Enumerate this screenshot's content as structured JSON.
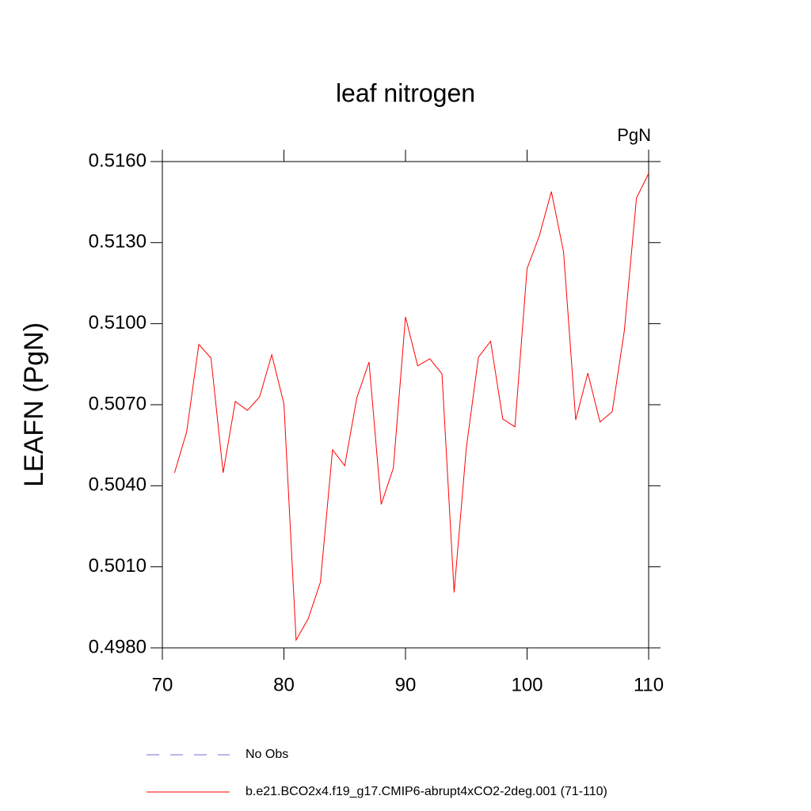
{
  "chart_data": {
    "type": "line",
    "title": "leaf nitrogen",
    "unit_label": "PgN",
    "y_label": "LEAFN  (PgN)",
    "x": [
      71,
      72,
      73,
      74,
      75,
      76,
      77,
      78,
      79,
      80,
      81,
      82,
      83,
      84,
      85,
      86,
      87,
      88,
      89,
      90,
      91,
      92,
      93,
      94,
      95,
      96,
      97,
      98,
      99,
      100,
      101,
      102,
      103,
      104,
      105,
      106,
      107,
      108,
      109,
      110
    ],
    "series": [
      {
        "name": "b.e21.BCO2x4.f19_g17.CMIP6-abrupt4xCO2-2deg.001 (71-110)",
        "color": "#ff0000",
        "values": [
          0.50448,
          0.506,
          0.50923,
          0.50873,
          0.50448,
          0.50712,
          0.50679,
          0.50729,
          0.50885,
          0.50703,
          0.49829,
          0.49908,
          0.50043,
          0.50533,
          0.50474,
          0.50726,
          0.50858,
          0.50331,
          0.50465,
          0.51025,
          0.50844,
          0.5087,
          0.50814,
          0.50005,
          0.50539,
          0.50876,
          0.50935,
          0.50647,
          0.50618,
          0.51204,
          0.51324,
          0.51489,
          0.51266,
          0.50644,
          0.50817,
          0.50636,
          0.50674,
          0.50973,
          0.51465,
          0.51556
        ]
      }
    ],
    "extra_legend": [
      {
        "name": "No Obs",
        "color": "#7070d0",
        "style": "dashed"
      }
    ],
    "xlim": [
      70,
      110
    ],
    "xticks": [
      70,
      80,
      90,
      100,
      110
    ],
    "ylim": [
      0.498,
      0.516
    ],
    "yticks": [
      {
        "value": 0.498,
        "label": "0.4980"
      },
      {
        "value": 0.501,
        "label": "0.5010"
      },
      {
        "value": 0.504,
        "label": "0.5040"
      },
      {
        "value": 0.507,
        "label": "0.5070"
      },
      {
        "value": 0.51,
        "label": "0.5100"
      },
      {
        "value": 0.513,
        "label": "0.5130"
      },
      {
        "value": 0.516,
        "label": "0.5160"
      }
    ]
  }
}
